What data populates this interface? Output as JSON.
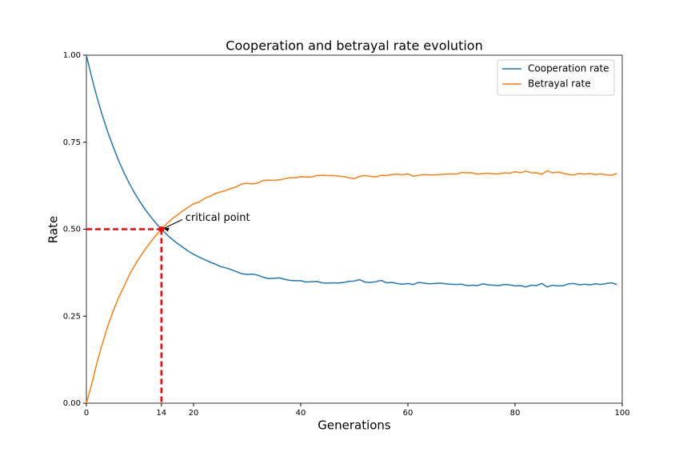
{
  "chart_data": {
    "type": "line",
    "title": "Cooperation and betrayal rate evolution",
    "xlabel": "Generations",
    "ylabel": "Rate",
    "x": [
      0,
      1,
      2,
      3,
      4,
      5,
      6,
      7,
      8,
      9,
      10,
      11,
      12,
      13,
      14,
      15,
      16,
      17,
      18,
      19,
      20,
      21,
      22,
      23,
      24,
      25,
      26,
      27,
      28,
      29,
      30,
      31,
      32,
      33,
      34,
      35,
      36,
      37,
      38,
      39,
      40,
      41,
      42,
      43,
      44,
      45,
      46,
      47,
      48,
      49,
      50,
      51,
      52,
      53,
      54,
      55,
      56,
      57,
      58,
      59,
      60,
      61,
      62,
      63,
      64,
      65,
      66,
      67,
      68,
      69,
      70,
      71,
      72,
      73,
      74,
      75,
      76,
      77,
      78,
      79,
      80,
      81,
      82,
      83,
      84,
      85,
      86,
      87,
      88,
      89,
      90,
      91,
      92,
      93,
      94,
      95,
      96,
      97,
      98,
      99
    ],
    "series": [
      {
        "name": "Cooperation rate",
        "color": "#1f77b4",
        "values": [
          1.0,
          0.936,
          0.878,
          0.826,
          0.779,
          0.737,
          0.698,
          0.663,
          0.632,
          0.604,
          0.579,
          0.556,
          0.536,
          0.517,
          0.5,
          0.485,
          0.471,
          0.459,
          0.448,
          0.437,
          0.428,
          0.42,
          0.413,
          0.406,
          0.4,
          0.393,
          0.389,
          0.384,
          0.378,
          0.372,
          0.37,
          0.371,
          0.368,
          0.362,
          0.358,
          0.359,
          0.36,
          0.356,
          0.353,
          0.352,
          0.352,
          0.348,
          0.349,
          0.35,
          0.346,
          0.345,
          0.346,
          0.345,
          0.347,
          0.35,
          0.351,
          0.355,
          0.348,
          0.347,
          0.349,
          0.353,
          0.346,
          0.347,
          0.344,
          0.342,
          0.344,
          0.341,
          0.347,
          0.345,
          0.343,
          0.344,
          0.345,
          0.343,
          0.342,
          0.341,
          0.342,
          0.338,
          0.339,
          0.338,
          0.343,
          0.34,
          0.339,
          0.338,
          0.341,
          0.34,
          0.337,
          0.338,
          0.334,
          0.339,
          0.338,
          0.344,
          0.334,
          0.339,
          0.337,
          0.338,
          0.343,
          0.344,
          0.34,
          0.342,
          0.34,
          0.343,
          0.341,
          0.344,
          0.346,
          0.341
        ]
      },
      {
        "name": "Betrayal rate",
        "color": "#ff7f0e",
        "values": [
          0,
          0.055,
          0.118,
          0.172,
          0.222,
          0.265,
          0.303,
          0.335,
          0.368,
          0.396,
          0.42,
          0.443,
          0.463,
          0.483,
          0.5,
          0.516,
          0.53,
          0.541,
          0.553,
          0.563,
          0.573,
          0.578,
          0.588,
          0.594,
          0.602,
          0.607,
          0.611,
          0.617,
          0.622,
          0.63,
          0.632,
          0.63,
          0.633,
          0.64,
          0.641,
          0.64,
          0.642,
          0.645,
          0.648,
          0.648,
          0.651,
          0.65,
          0.65,
          0.654,
          0.655,
          0.654,
          0.654,
          0.653,
          0.651,
          0.648,
          0.645,
          0.652,
          0.654,
          0.652,
          0.65,
          0.655,
          0.654,
          0.657,
          0.658,
          0.656,
          0.659,
          0.652,
          0.655,
          0.657,
          0.656,
          0.656,
          0.657,
          0.658,
          0.659,
          0.658,
          0.663,
          0.662,
          0.662,
          0.658,
          0.66,
          0.661,
          0.659,
          0.659,
          0.662,
          0.661,
          0.665,
          0.662,
          0.667,
          0.662,
          0.662,
          0.658,
          0.668,
          0.662,
          0.664,
          0.661,
          0.657,
          0.656,
          0.66,
          0.658,
          0.66,
          0.657,
          0.659,
          0.656,
          0.655,
          0.66
        ]
      }
    ],
    "annotation": {
      "text": "critical point",
      "x": 14,
      "y": 0.5,
      "color": "#ff0000"
    },
    "xlim": [
      0,
      100
    ],
    "xticks": [
      0,
      14,
      20,
      40,
      60,
      80,
      100
    ],
    "ylim": [
      0,
      1
    ],
    "yticks": [
      {
        "value": 0,
        "label": "0.00"
      },
      {
        "value": 0.25,
        "label": "0.25"
      },
      {
        "value": 0.5,
        "label": "0.50"
      },
      {
        "value": 0.75,
        "label": "0.75"
      },
      {
        "value": 1,
        "label": "1.00"
      }
    ],
    "legend": "upper right"
  }
}
